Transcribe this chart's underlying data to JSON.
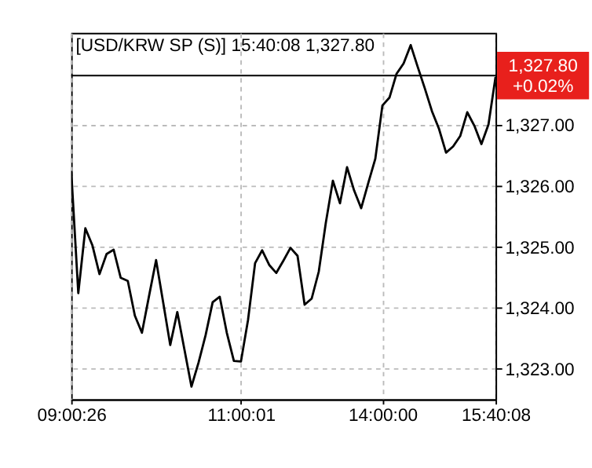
{
  "chart_data": {
    "type": "line",
    "title": "[USD/KRW SP (S)] 15:40:08 1,327.80",
    "categories": [
      "09:00:26",
      null,
      null,
      null,
      null,
      null,
      null,
      null,
      null,
      null,
      null,
      null,
      null,
      null,
      null,
      null,
      null,
      null,
      null,
      null,
      null,
      null,
      null,
      null,
      "11:00:01",
      null,
      null,
      null,
      null,
      null,
      null,
      null,
      null,
      null,
      null,
      null,
      null,
      null,
      null,
      null,
      null,
      null,
      null,
      null,
      "14:00:00",
      null,
      null,
      null,
      null,
      null,
      null,
      null,
      null,
      null,
      null,
      null,
      null,
      null,
      null,
      null,
      "15:40:08"
    ],
    "series": [
      {
        "color": "#000000",
        "values": [
          1326.24,
          1324.24,
          1325.3,
          1325.02,
          1324.55,
          1324.88,
          1324.95,
          1324.49,
          1324.44,
          1323.87,
          1323.59,
          1324.19,
          1324.78,
          1324.09,
          1323.39,
          1323.93,
          1323.32,
          1322.71,
          1323.1,
          1323.55,
          1324.09,
          1324.18,
          1323.59,
          1323.13,
          1323.12,
          1323.8,
          1324.73,
          1324.94,
          1324.7,
          1324.57,
          1324.77,
          1324.98,
          1324.85,
          1324.05,
          1324.15,
          1324.59,
          1325.39,
          1326.08,
          1325.71,
          1326.3,
          1325.92,
          1325.63,
          1326.04,
          1326.44,
          1327.31,
          1327.44,
          1327.83,
          1328.0,
          1328.3,
          1327.94,
          1327.59,
          1327.22,
          1326.93,
          1326.54,
          1326.64,
          1326.81,
          1327.2,
          1326.98,
          1326.68,
          1327.0,
          1327.78
        ]
      }
    ],
    "ylim": [
      1322.5,
      1328.5
    ],
    "yticks": [
      {
        "value": 1323,
        "label": "1,323.00"
      },
      {
        "value": 1324,
        "label": "1,324.00"
      },
      {
        "value": 1325,
        "label": "1,325.00"
      },
      {
        "value": 1326,
        "label": "1,326.00"
      },
      {
        "value": 1327,
        "label": "1,327.00"
      }
    ],
    "ref_lines": [
      {
        "axis": "y",
        "value": 1327.8,
        "label": "1,327.80 +0.02%",
        "color": "#000000"
      }
    ],
    "grid": true,
    "marker": "none",
    "line_style": "solid"
  }
}
